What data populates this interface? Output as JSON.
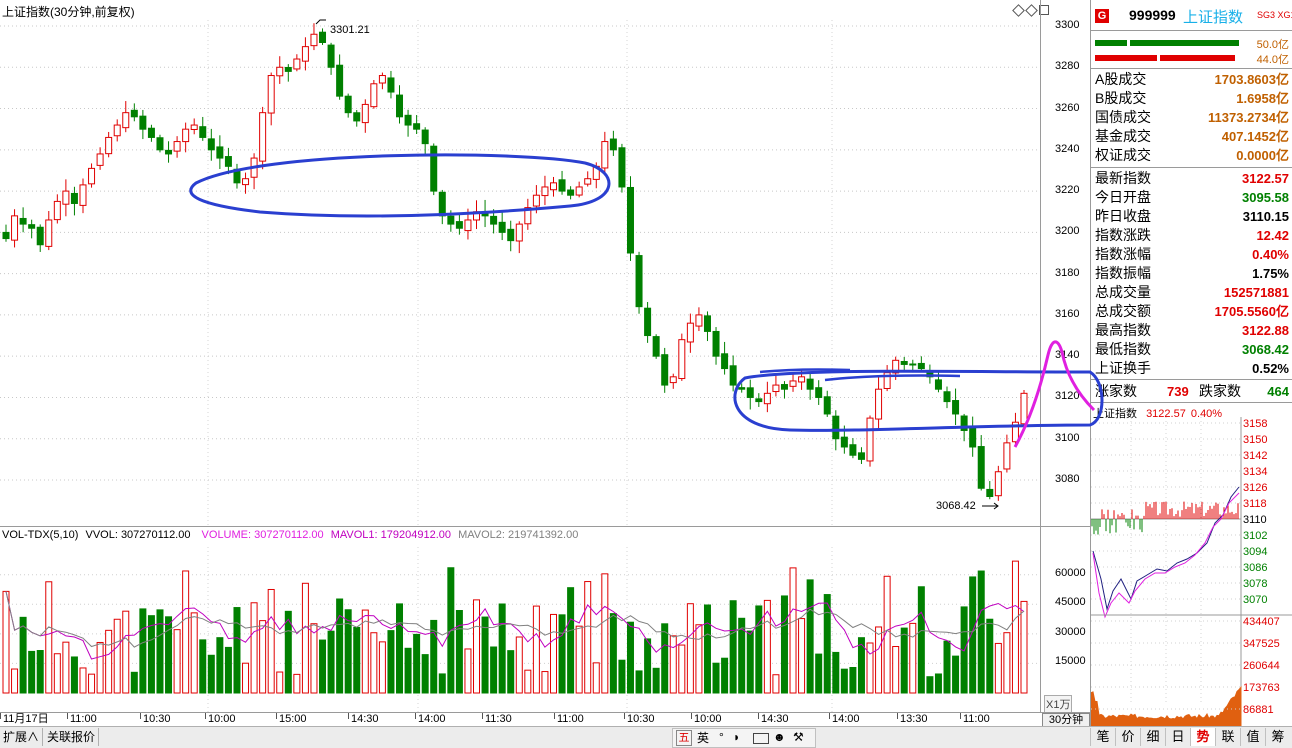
{
  "chart_header": {
    "title": "上证指数(30分钟,前复权)",
    "icons": [
      "diamond-icon",
      "diamond-icon",
      "square-icon"
    ]
  },
  "y_axis": {
    "ticks": [
      "3300",
      "3280",
      "3260",
      "3240",
      "3220",
      "3200",
      "3180",
      "3160",
      "3140",
      "3120",
      "3100",
      "3080"
    ]
  },
  "annotations": {
    "high": "3301.21",
    "low": "3068.42"
  },
  "volume_header": {
    "name": "VOL-TDX(5,10)",
    "vvol": "VVOL: 307270112.00",
    "volume": "VOLUME: 307270112.00",
    "mavol1": "MAVOL1: 179204912.00",
    "mavol2": "MAVOL2: 219741392.00"
  },
  "volume_axis": {
    "ticks": [
      "60000",
      "45000",
      "30000",
      "15000"
    ],
    "unit": "X1万"
  },
  "x_axis": {
    "labels": [
      "11月17日",
      "11:00",
      "10:30",
      "10:00",
      "15:00",
      "14:30",
      "14:00",
      "11:30",
      "11:00",
      "10:30",
      "10:00",
      "14:30",
      "14:00",
      "13:30",
      "11:00"
    ],
    "period": "30分钟"
  },
  "quote": {
    "code": "999999",
    "name": "上证指数",
    "tags": "SG3 XG1",
    "badge": "G",
    "bar1": "50.0亿",
    "bar2": "44.0亿"
  },
  "stats_a": [
    {
      "label": "A股成交",
      "value": "1703.8603亿"
    },
    {
      "label": "B股成交",
      "value": "1.6958亿"
    },
    {
      "label": "国债成交",
      "value": "11373.2734亿"
    },
    {
      "label": "基金成交",
      "value": "407.1452亿"
    },
    {
      "label": "权证成交",
      "value": "0.0000亿"
    }
  ],
  "stats_b": [
    {
      "label": "最新指数",
      "value": "3122.57",
      "color": "#e00000"
    },
    {
      "label": "今日开盘",
      "value": "3095.58",
      "color": "#008000"
    },
    {
      "label": "昨日收盘",
      "value": "3110.15",
      "color": "#000000"
    },
    {
      "label": "指数涨跌",
      "value": "12.42",
      "color": "#e00000"
    },
    {
      "label": "指数涨幅",
      "value": "0.40%",
      "color": "#e00000"
    },
    {
      "label": "指数振幅",
      "value": "1.75%",
      "color": "#000000"
    },
    {
      "label": "总成交量",
      "value": "152571881",
      "color": "#e00000"
    },
    {
      "label": "总成交额",
      "value": "1705.5560亿",
      "color": "#e00000"
    },
    {
      "label": "最高指数",
      "value": "3122.88",
      "color": "#e00000"
    },
    {
      "label": "最低指数",
      "value": "3068.42",
      "color": "#008000"
    },
    {
      "label": "上证换手",
      "value": "0.52%",
      "color": "#000000"
    }
  ],
  "breadth": {
    "up_label": "涨家数",
    "up_value": "739",
    "down_label": "跌家数",
    "down_value": "464"
  },
  "mini_chart": {
    "title": "上证指数",
    "price": "3122.57",
    "pct": "0.40%",
    "price_ticks": [
      "3158",
      "3150",
      "3142",
      "3134",
      "3126",
      "3118",
      "3110",
      "3102",
      "3094",
      "3086",
      "3078",
      "3070"
    ],
    "vol_ticks": [
      "434407",
      "347525",
      "260644",
      "173763",
      "86881"
    ]
  },
  "status_bar": {
    "expand": "扩展∧",
    "related": "关联报价",
    "ime": [
      "五",
      "英"
    ]
  },
  "right_tabs": [
    "笔",
    "价",
    "细",
    "日",
    "势",
    "联",
    "值",
    "筹"
  ],
  "colors": {
    "up": "#e00000",
    "down": "#008000",
    "mavol1": "#c000c0",
    "mavol2": "#808080",
    "annotation_blue": "#2a3fd0",
    "annotation_magenta": "#e020e0"
  },
  "chart_data": {
    "type": "candlestick",
    "title": "上证指数(30分钟,前复权)",
    "ylim": [
      3060,
      3305
    ],
    "high_mark": 3301.21,
    "low_mark": 3068.42,
    "close_series": [
      3197,
      3208,
      3204,
      3202,
      3194,
      3206,
      3215,
      3220,
      3214,
      3223,
      3231,
      3238,
      3246,
      3252,
      3258,
      3256,
      3250,
      3246,
      3240,
      3238,
      3244,
      3250,
      3252,
      3246,
      3240,
      3236,
      3232,
      3224,
      3226,
      3236,
      3258,
      3276,
      3280,
      3278,
      3284,
      3290,
      3296,
      3292,
      3280,
      3266,
      3258,
      3254,
      3262,
      3272,
      3276,
      3268,
      3256,
      3252,
      3250,
      3243,
      3220,
      3208,
      3204,
      3202,
      3206,
      3210,
      3208,
      3204,
      3200,
      3196,
      3204,
      3212,
      3218,
      3222,
      3224,
      3220,
      3218,
      3222,
      3226,
      3232,
      3244,
      3240,
      3222,
      3190,
      3164,
      3150,
      3140,
      3126,
      3130,
      3148,
      3156,
      3160,
      3152,
      3140,
      3134,
      3126,
      3124,
      3120,
      3118,
      3122,
      3126,
      3124,
      3128,
      3130,
      3124,
      3120,
      3112,
      3100,
      3096,
      3092,
      3090,
      3110,
      3124,
      3132,
      3138,
      3136,
      3136,
      3134,
      3130,
      3124,
      3118,
      3112,
      3104,
      3096,
      3076,
      3072,
      3084,
      3098,
      3108,
      3122
    ]
  }
}
